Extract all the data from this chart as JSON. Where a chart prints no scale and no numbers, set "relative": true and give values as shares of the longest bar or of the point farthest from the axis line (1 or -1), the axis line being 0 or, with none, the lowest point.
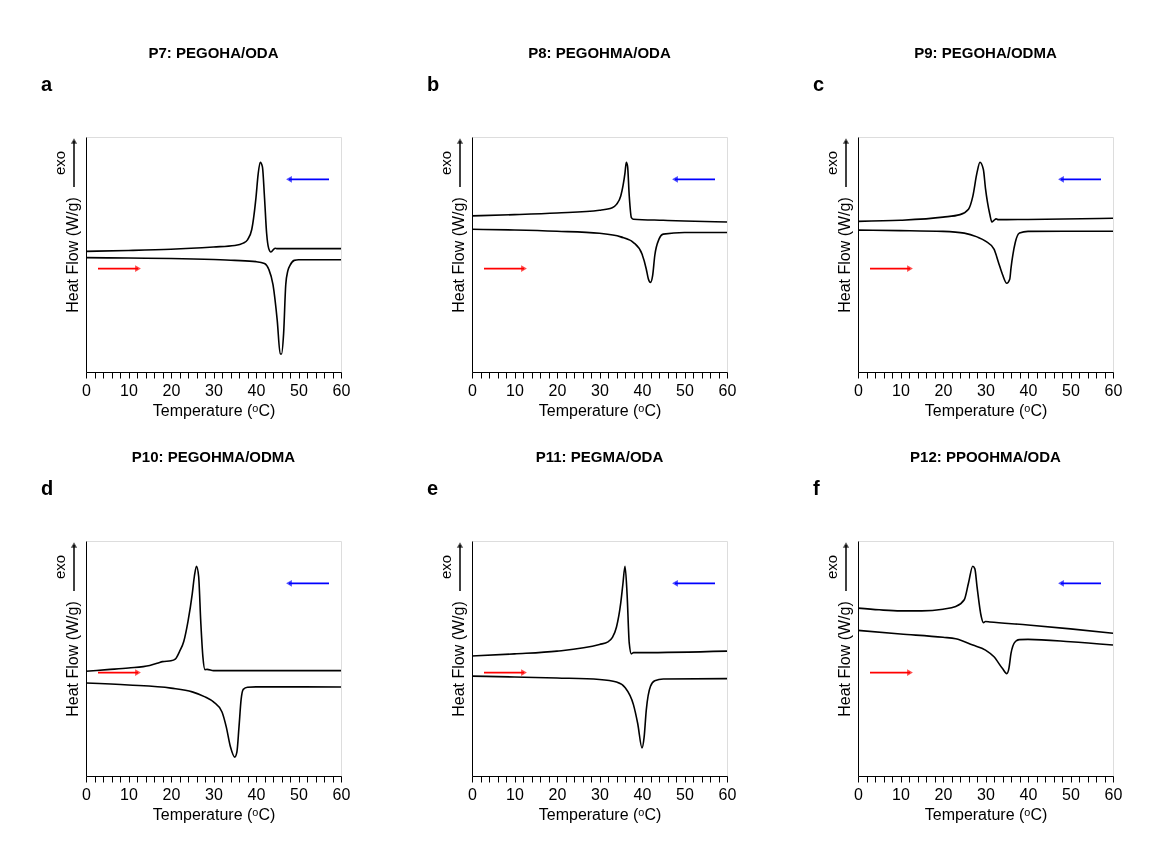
{
  "chart_data": [
    {
      "type": "line",
      "title": "P7: PEGOHA/ODA",
      "xlabel": "Temperature (ᵒC)",
      "ylabel": "Heat Flow (W/g)",
      "annotations": [
        "a",
        "exo"
      ],
      "relative": true,
      "xlim": [
        0,
        60
      ],
      "xticks": [
        0,
        {
          "value": 2,
          "label": null
        },
        {
          "value": 4,
          "label": null
        },
        {
          "value": 6,
          "label": null
        },
        {
          "value": 8,
          "label": null
        },
        10,
        {
          "value": 12,
          "label": null
        },
        {
          "value": 14,
          "label": null
        },
        {
          "value": 16,
          "label": null
        },
        {
          "value": 18,
          "label": null
        },
        20,
        {
          "value": 22,
          "label": null
        },
        {
          "value": 24,
          "label": null
        },
        {
          "value": 26,
          "label": null
        },
        {
          "value": 28,
          "label": null
        },
        30,
        {
          "value": 32,
          "label": null
        },
        {
          "value": 34,
          "label": null
        },
        {
          "value": 36,
          "label": null
        },
        {
          "value": 38,
          "label": null
        },
        40,
        {
          "value": 42,
          "label": null
        },
        {
          "value": 44,
          "label": null
        },
        {
          "value": 46,
          "label": null
        },
        {
          "value": 48,
          "label": null
        },
        50,
        {
          "value": 52,
          "label": null
        },
        {
          "value": 54,
          "label": null
        },
        {
          "value": 56,
          "label": null
        },
        {
          "value": 58,
          "label": null
        },
        60
      ],
      "grid": false,
      "legend": false,
      "tick_labels": "x",
      "series": [
        {
          "color": "#000000",
          "x": [
            0,
            10,
            20,
            30,
            35,
            37,
            38,
            39,
            40,
            40.5,
            41,
            41.5,
            42,
            42.5,
            43,
            43.5,
            44.5,
            45,
            50,
            60
          ],
          "values": [
            0.575,
            0.579,
            0.585,
            0.596,
            0.603,
            0.614,
            0.63,
            0.679,
            0.832,
            0.942,
            1,
            0.979,
            0.832,
            0.661,
            0.588,
            0.572,
            0.59,
            0.588,
            0.588,
            0.588
          ]
        },
        {
          "color": "#000000",
          "x": [
            0,
            10,
            20,
            30,
            35,
            40,
            42,
            43,
            44,
            45,
            45.7,
            46,
            46.5,
            47,
            47.5,
            48,
            49,
            50,
            60
          ],
          "values": [
            0.545,
            0.543,
            0.541,
            0.536,
            0.532,
            0.526,
            0.517,
            0.49,
            0.416,
            0.245,
            0.086,
            0.086,
            0.184,
            0.416,
            0.483,
            0.508,
            0.532,
            0.535,
            0.535
          ]
        }
      ]
    },
    {
      "type": "line",
      "title": "P8: PEGOHMA/ODA",
      "xlabel": "Temperature (ᵒC)",
      "ylabel": "Heat Flow (W/g)",
      "annotations": [
        "b",
        "exo"
      ],
      "relative": true,
      "xlim": [
        0,
        60
      ],
      "xticks": [
        0,
        {
          "value": 2,
          "label": null
        },
        {
          "value": 4,
          "label": null
        },
        {
          "value": 6,
          "label": null
        },
        {
          "value": 8,
          "label": null
        },
        10,
        {
          "value": 12,
          "label": null
        },
        {
          "value": 14,
          "label": null
        },
        {
          "value": 16,
          "label": null
        },
        {
          "value": 18,
          "label": null
        },
        20,
        {
          "value": 22,
          "label": null
        },
        {
          "value": 24,
          "label": null
        },
        {
          "value": 26,
          "label": null
        },
        {
          "value": 28,
          "label": null
        },
        30,
        {
          "value": 32,
          "label": null
        },
        {
          "value": 34,
          "label": null
        },
        {
          "value": 36,
          "label": null
        },
        {
          "value": 38,
          "label": null
        },
        40,
        {
          "value": 42,
          "label": null
        },
        {
          "value": 44,
          "label": null
        },
        {
          "value": 46,
          "label": null
        },
        {
          "value": 48,
          "label": null
        },
        50,
        {
          "value": 52,
          "label": null
        },
        {
          "value": 54,
          "label": null
        },
        {
          "value": 56,
          "label": null
        },
        {
          "value": 58,
          "label": null
        },
        60
      ],
      "grid": false,
      "legend": false,
      "tick_labels": "x",
      "series": [
        {
          "color": "#000000",
          "x": [
            0,
            10,
            20,
            30,
            33,
            34,
            35,
            36,
            36.3,
            36.6,
            37,
            37.5,
            38,
            45,
            50,
            60
          ],
          "values": [
            0.744,
            0.75,
            0.758,
            0.771,
            0.783,
            0.799,
            0.839,
            0.949,
            1,
            0.981,
            0.839,
            0.736,
            0.728,
            0.723,
            0.72,
            0.715
          ]
        },
        {
          "color": "#000000",
          "x": [
            0,
            10,
            20,
            30,
            35,
            38,
            40,
            41,
            41.5,
            42,
            42.5,
            43,
            44,
            45,
            50,
            60
          ],
          "values": [
            0.68,
            0.677,
            0.671,
            0.661,
            0.644,
            0.617,
            0.562,
            0.491,
            0.443,
            0.427,
            0.459,
            0.554,
            0.633,
            0.657,
            0.665,
            0.665
          ]
        }
      ]
    },
    {
      "type": "line",
      "title": "P9: PEGOHA/ODMA",
      "xlabel": "Temperature (ᵒC)",
      "ylabel": "Heat Flow (W/g)",
      "annotations": [
        "c",
        "exo"
      ],
      "relative": true,
      "xlim": [
        0,
        60
      ],
      "xticks": [
        0,
        {
          "value": 2,
          "label": null
        },
        {
          "value": 4,
          "label": null
        },
        {
          "value": 6,
          "label": null
        },
        {
          "value": 8,
          "label": null
        },
        10,
        {
          "value": 12,
          "label": null
        },
        {
          "value": 14,
          "label": null
        },
        {
          "value": 16,
          "label": null
        },
        {
          "value": 18,
          "label": null
        },
        20,
        {
          "value": 22,
          "label": null
        },
        {
          "value": 24,
          "label": null
        },
        {
          "value": 26,
          "label": null
        },
        {
          "value": 28,
          "label": null
        },
        30,
        {
          "value": 32,
          "label": null
        },
        {
          "value": 34,
          "label": null
        },
        {
          "value": 36,
          "label": null
        },
        {
          "value": 38,
          "label": null
        },
        40,
        {
          "value": 42,
          "label": null
        },
        {
          "value": 44,
          "label": null
        },
        {
          "value": 46,
          "label": null
        },
        {
          "value": 48,
          "label": null
        },
        50,
        {
          "value": 52,
          "label": null
        },
        {
          "value": 54,
          "label": null
        },
        {
          "value": 56,
          "label": null
        },
        {
          "value": 58,
          "label": null
        },
        60
      ],
      "grid": false,
      "legend": false,
      "tick_labels": "x",
      "series": [
        {
          "color": "#000000",
          "x": [
            0,
            10,
            20,
            24,
            26,
            27,
            28,
            28.7,
            29.5,
            30,
            31,
            31.5,
            32,
            32.5,
            33,
            40,
            60
          ],
          "values": [
            0.718,
            0.723,
            0.738,
            0.75,
            0.776,
            0.836,
            0.95,
            1,
            0.965,
            0.874,
            0.753,
            0.715,
            0.723,
            0.73,
            0.726,
            0.727,
            0.733
          ]
        },
        {
          "color": "#000000",
          "x": [
            0,
            10,
            20,
            25,
            28,
            30,
            32,
            33,
            34,
            35,
            35.7,
            36,
            37,
            38,
            40,
            60
          ],
          "values": [
            0.676,
            0.674,
            0.67,
            0.662,
            0.644,
            0.624,
            0.586,
            0.526,
            0.465,
            0.423,
            0.442,
            0.495,
            0.617,
            0.662,
            0.67,
            0.671
          ]
        }
      ]
    },
    {
      "type": "line",
      "title": "P10: PEGOHMA/ODMA",
      "xlabel": "Temperature (ᵒC)",
      "ylabel": "Heat Flow (W/g)",
      "annotations": [
        "d",
        "exo"
      ],
      "relative": true,
      "xlim": [
        0,
        60
      ],
      "xticks": [
        0,
        {
          "value": 2,
          "label": null
        },
        {
          "value": 4,
          "label": null
        },
        {
          "value": 6,
          "label": null
        },
        {
          "value": 8,
          "label": null
        },
        10,
        {
          "value": 12,
          "label": null
        },
        {
          "value": 14,
          "label": null
        },
        {
          "value": 16,
          "label": null
        },
        {
          "value": 18,
          "label": null
        },
        20,
        {
          "value": 22,
          "label": null
        },
        {
          "value": 24,
          "label": null
        },
        {
          "value": 26,
          "label": null
        },
        {
          "value": 28,
          "label": null
        },
        30,
        {
          "value": 32,
          "label": null
        },
        {
          "value": 34,
          "label": null
        },
        {
          "value": 36,
          "label": null
        },
        {
          "value": 38,
          "label": null
        },
        40,
        {
          "value": 42,
          "label": null
        },
        {
          "value": 44,
          "label": null
        },
        {
          "value": 46,
          "label": null
        },
        {
          "value": 48,
          "label": null
        },
        50,
        {
          "value": 52,
          "label": null
        },
        {
          "value": 54,
          "label": null
        },
        {
          "value": 56,
          "label": null
        },
        {
          "value": 58,
          "label": null
        },
        60
      ],
      "grid": false,
      "legend": false,
      "tick_labels": "x",
      "series": [
        {
          "color": "#000000",
          "x": [
            0,
            5,
            10,
            15,
            17,
            18,
            20,
            21,
            22,
            23,
            24,
            25,
            25.5,
            26,
            26.5,
            27,
            27.5,
            28,
            28.5,
            30,
            40,
            60
          ],
          "values": [
            0.499,
            0.507,
            0.515,
            0.527,
            0.539,
            0.545,
            0.549,
            0.557,
            0.593,
            0.641,
            0.737,
            0.868,
            0.952,
            1,
            0.952,
            0.737,
            0.569,
            0.507,
            0.508,
            0.502,
            0.502,
            0.502
          ]
        },
        {
          "color": "#000000",
          "x": [
            0,
            10,
            20,
            25,
            28,
            30,
            32,
            33,
            34,
            35,
            35.5,
            36,
            36.5,
            37,
            38,
            40,
            60
          ],
          "values": [
            0.443,
            0.434,
            0.419,
            0.401,
            0.377,
            0.353,
            0.305,
            0.234,
            0.138,
            0.09,
            0.114,
            0.234,
            0.365,
            0.413,
            0.423,
            0.425,
            0.424
          ]
        }
      ]
    },
    {
      "type": "line",
      "title": "P11: PEGMA/ODA",
      "xlabel": "Temperature (ᵒC)",
      "ylabel": "Heat Flow (W/g)",
      "annotations": [
        "e",
        "exo"
      ],
      "relative": true,
      "xlim": [
        0,
        60
      ],
      "xticks": [
        0,
        {
          "value": 2,
          "label": null
        },
        {
          "value": 4,
          "label": null
        },
        {
          "value": 6,
          "label": null
        },
        {
          "value": 8,
          "label": null
        },
        10,
        {
          "value": 12,
          "label": null
        },
        {
          "value": 14,
          "label": null
        },
        {
          "value": 16,
          "label": null
        },
        {
          "value": 18,
          "label": null
        },
        20,
        {
          "value": 22,
          "label": null
        },
        {
          "value": 24,
          "label": null
        },
        {
          "value": 26,
          "label": null
        },
        {
          "value": 28,
          "label": null
        },
        30,
        {
          "value": 32,
          "label": null
        },
        {
          "value": 34,
          "label": null
        },
        {
          "value": 36,
          "label": null
        },
        {
          "value": 38,
          "label": null
        },
        40,
        {
          "value": 42,
          "label": null
        },
        {
          "value": 44,
          "label": null
        },
        {
          "value": 46,
          "label": null
        },
        {
          "value": 48,
          "label": null
        },
        50,
        {
          "value": 52,
          "label": null
        },
        {
          "value": 54,
          "label": null
        },
        {
          "value": 56,
          "label": null
        },
        {
          "value": 58,
          "label": null
        },
        60
      ],
      "grid": false,
      "legend": false,
      "tick_labels": "x",
      "series": [
        {
          "color": "#000000",
          "x": [
            0,
            10,
            20,
            30,
            32,
            33,
            34,
            35,
            35.5,
            36,
            36.5,
            37,
            37.5,
            38,
            40,
            60
          ],
          "values": [
            0.572,
            0.582,
            0.595,
            0.627,
            0.639,
            0.659,
            0.71,
            0.825,
            0.914,
            1,
            0.863,
            0.633,
            0.582,
            0.588,
            0.588,
            0.595
          ]
        },
        {
          "color": "#000000",
          "x": [
            0,
            10,
            20,
            30,
            34,
            36,
            38,
            39,
            40,
            40.5,
            41,
            42,
            43,
            45,
            60
          ],
          "values": [
            0.476,
            0.472,
            0.467,
            0.46,
            0.448,
            0.422,
            0.339,
            0.249,
            0.134,
            0.185,
            0.313,
            0.428,
            0.454,
            0.462,
            0.464
          ]
        }
      ]
    },
    {
      "type": "line",
      "title": "P12: PPOOHMA/ODA",
      "xlabel": "Temperature (ᵒC)",
      "ylabel": "Heat Flow (W/g)",
      "annotations": [
        "f",
        "exo"
      ],
      "relative": true,
      "xlim": [
        0,
        60
      ],
      "xticks": [
        0,
        {
          "value": 2,
          "label": null
        },
        {
          "value": 4,
          "label": null
        },
        {
          "value": 6,
          "label": null
        },
        {
          "value": 8,
          "label": null
        },
        10,
        {
          "value": 12,
          "label": null
        },
        {
          "value": 14,
          "label": null
        },
        {
          "value": 16,
          "label": null
        },
        {
          "value": 18,
          "label": null
        },
        20,
        {
          "value": 22,
          "label": null
        },
        {
          "value": 24,
          "label": null
        },
        {
          "value": 26,
          "label": null
        },
        {
          "value": 28,
          "label": null
        },
        30,
        {
          "value": 32,
          "label": null
        },
        {
          "value": 34,
          "label": null
        },
        {
          "value": 36,
          "label": null
        },
        {
          "value": 38,
          "label": null
        },
        40,
        {
          "value": 42,
          "label": null
        },
        {
          "value": 44,
          "label": null
        },
        {
          "value": 46,
          "label": null
        },
        {
          "value": 48,
          "label": null
        },
        50,
        {
          "value": 52,
          "label": null
        },
        {
          "value": 54,
          "label": null
        },
        {
          "value": 56,
          "label": null
        },
        {
          "value": 58,
          "label": null
        },
        60
      ],
      "grid": false,
      "legend": false,
      "tick_labels": "x",
      "series": [
        {
          "color": "#000000",
          "x": [
            0,
            5,
            10,
            15,
            20,
            23,
            25,
            26,
            27,
            27.5,
            28,
            29,
            29.5,
            30,
            31,
            40,
            50,
            60
          ],
          "values": [
            0.8,
            0.792,
            0.787,
            0.787,
            0.795,
            0.808,
            0.84,
            0.92,
            1,
            0.987,
            0.904,
            0.76,
            0.731,
            0.736,
            0.734,
            0.72,
            0.701,
            0.68
          ]
        },
        {
          "color": "#000000",
          "x": [
            0,
            10,
            20,
            23,
            27,
            30,
            32,
            34,
            35,
            35.5,
            36,
            37,
            38,
            40,
            50,
            60
          ],
          "values": [
            0.694,
            0.677,
            0.661,
            0.654,
            0.624,
            0.6,
            0.568,
            0.512,
            0.488,
            0.512,
            0.584,
            0.64,
            0.65,
            0.651,
            0.64,
            0.624
          ]
        }
      ]
    }
  ]
}
